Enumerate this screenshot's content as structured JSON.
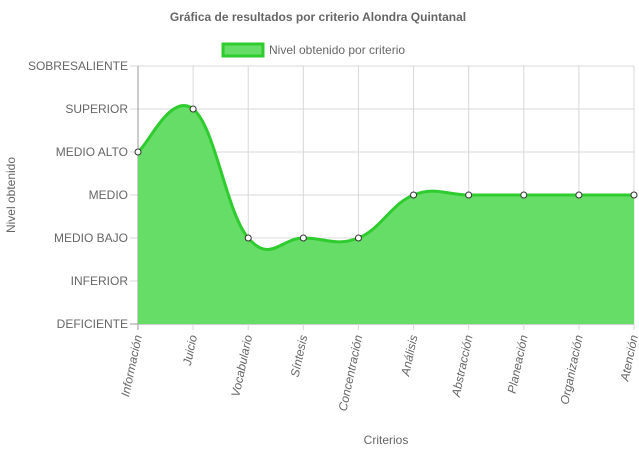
{
  "chart_data": {
    "type": "area",
    "title": "Gráfica de resultados por criterio Alondra Quintanal",
    "xlabel": "Criterios",
    "ylabel": "Nivel obtenido",
    "legend": {
      "label": "Nivel obtenido por criterio",
      "position": "top-center"
    },
    "y_levels": [
      "DEFICIENTE",
      "INFERIOR",
      "MEDIO BAJO",
      "MEDIO",
      "MEDIO ALTO",
      "SUPERIOR",
      "SOBRESALIENTE"
    ],
    "ylim": [
      0,
      6
    ],
    "categories": [
      "Información",
      "Juicio",
      "Vocabulario",
      "Síntesis",
      "Concentración",
      "Análisis",
      "Abstracción",
      "Planeación",
      "Organización",
      "Atención"
    ],
    "series": [
      {
        "name": "Nivel obtenido por criterio",
        "values": [
          4,
          5,
          2,
          2,
          2,
          3,
          3,
          3,
          3,
          3
        ]
      }
    ],
    "grid": true,
    "colors": {
      "fill": "#66dd66",
      "line": "#2ecc2e",
      "grid": "#d8d8d8",
      "axis": "#999999"
    }
  }
}
